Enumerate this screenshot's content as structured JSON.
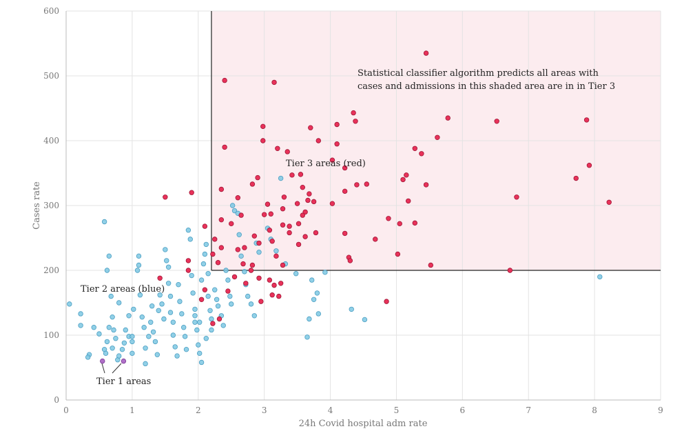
{
  "chart_data": {
    "type": "scatter",
    "title": "",
    "xlabel": "24h Covid hospital adm rate",
    "ylabel": "Cases rate",
    "xlim": [
      0,
      9
    ],
    "ylim": [
      0,
      600
    ],
    "xticks": [
      "0",
      "1",
      "2",
      "3",
      "4",
      "5",
      "6",
      "7",
      "8",
      "9"
    ],
    "yticks": [
      "0",
      "100",
      "200",
      "300",
      "400",
      "500",
      "600"
    ],
    "grid": true,
    "legend": "none",
    "colors": {
      "tier2": "#7ec8e3",
      "tier2_stroke": "#4a9ec2",
      "tier3": "#e8325a",
      "tier3_stroke": "#a01535",
      "tier1": "#b070c8",
      "tier1_stroke": "#7a3a95",
      "shade": "#fcecef",
      "threshold_line": "#222222"
    },
    "threshold": {
      "x": 2.2,
      "y": 200
    },
    "annotations": {
      "classifier_line1": "Statistical classifier algorithm predicts all areas with",
      "classifier_line2": "cases and admissions in this shaded area are in in Tier 3",
      "tier3_label": "Tier 3 areas (red)",
      "tier2_label": "Tier 2 areas (blue)",
      "tier1_label": "Tier 1 areas"
    },
    "series": [
      {
        "name": "Tier 1 areas",
        "color": "#b070c8",
        "points": [
          [
            0.55,
            60
          ],
          [
            0.87,
            60
          ]
        ]
      },
      {
        "name": "Tier 3 areas (red)",
        "color": "#e8325a",
        "points": [
          [
            2.4,
            493
          ],
          [
            3.15,
            490
          ],
          [
            5.45,
            535
          ],
          [
            4.35,
            443
          ],
          [
            4.38,
            430
          ],
          [
            4.1,
            425
          ],
          [
            5.78,
            435
          ],
          [
            6.52,
            430
          ],
          [
            7.88,
            432
          ],
          [
            2.98,
            422
          ],
          [
            3.7,
            420
          ],
          [
            2.4,
            390
          ],
          [
            2.98,
            400
          ],
          [
            3.2,
            388
          ],
          [
            3.35,
            383
          ],
          [
            3.82,
            400
          ],
          [
            4.1,
            395
          ],
          [
            5.28,
            388
          ],
          [
            5.62,
            405
          ],
          [
            5.38,
            380
          ],
          [
            4.03,
            370
          ],
          [
            4.22,
            358
          ],
          [
            3.55,
            348
          ],
          [
            3.42,
            347
          ],
          [
            2.82,
            333
          ],
          [
            2.9,
            343
          ],
          [
            2.35,
            325
          ],
          [
            7.92,
            362
          ],
          [
            7.72,
            342
          ],
          [
            5.15,
            347
          ],
          [
            5.1,
            340
          ],
          [
            5.45,
            332
          ],
          [
            4.4,
            332
          ],
          [
            4.55,
            333
          ],
          [
            3.58,
            328
          ],
          [
            4.22,
            322
          ],
          [
            2.6,
            312
          ],
          [
            3.05,
            302
          ],
          [
            3.3,
            313
          ],
          [
            3.1,
            287
          ],
          [
            3.28,
            295
          ],
          [
            3.5,
            303
          ],
          [
            3.75,
            306
          ],
          [
            3.66,
            308
          ],
          [
            3.68,
            318
          ],
          [
            1.9,
            320
          ],
          [
            1.5,
            313
          ],
          [
            4.03,
            303
          ],
          [
            5.18,
            307
          ],
          [
            6.82,
            313
          ],
          [
            8.22,
            305
          ],
          [
            3.62,
            290
          ],
          [
            2.35,
            278
          ],
          [
            2.5,
            272
          ],
          [
            2.65,
            285
          ],
          [
            3.0,
            286
          ],
          [
            3.28,
            270
          ],
          [
            3.38,
            268
          ],
          [
            3.52,
            272
          ],
          [
            3.58,
            285
          ],
          [
            4.88,
            280
          ],
          [
            5.05,
            272
          ],
          [
            5.28,
            273
          ],
          [
            2.1,
            268
          ],
          [
            2.25,
            248
          ],
          [
            2.35,
            235
          ],
          [
            2.6,
            232
          ],
          [
            2.7,
            235
          ],
          [
            2.85,
            253
          ],
          [
            2.92,
            242
          ],
          [
            3.08,
            262
          ],
          [
            3.12,
            245
          ],
          [
            3.38,
            258
          ],
          [
            3.52,
            240
          ],
          [
            3.62,
            252
          ],
          [
            3.78,
            258
          ],
          [
            4.22,
            257
          ],
          [
            4.68,
            248
          ],
          [
            2.22,
            225
          ],
          [
            2.3,
            212
          ],
          [
            2.68,
            210
          ],
          [
            2.82,
            208
          ],
          [
            3.18,
            222
          ],
          [
            3.28,
            208
          ],
          [
            4.28,
            220
          ],
          [
            4.3,
            215
          ],
          [
            5.02,
            225
          ],
          [
            5.52,
            208
          ],
          [
            6.72,
            200
          ],
          [
            1.85,
            215
          ],
          [
            1.85,
            200
          ],
          [
            1.42,
            188
          ],
          [
            2.55,
            190
          ],
          [
            2.8,
            200
          ],
          [
            2.92,
            188
          ],
          [
            3.08,
            185
          ],
          [
            2.72,
            180
          ],
          [
            3.15,
            177
          ],
          [
            3.25,
            180
          ],
          [
            2.1,
            170
          ],
          [
            2.05,
            155
          ],
          [
            2.45,
            168
          ],
          [
            2.95,
            152
          ],
          [
            3.12,
            162
          ],
          [
            3.22,
            160
          ],
          [
            2.32,
            125
          ],
          [
            2.22,
            118
          ],
          [
            4.85,
            152
          ]
        ]
      },
      {
        "name": "Tier 2 areas (blue)",
        "color": "#7ec8e3",
        "points": [
          [
            0.05,
            148
          ],
          [
            0.22,
            133
          ],
          [
            0.22,
            115
          ],
          [
            0.35,
            70
          ],
          [
            0.33,
            66
          ],
          [
            0.42,
            112
          ],
          [
            0.5,
            102
          ],
          [
            0.58,
            78
          ],
          [
            0.6,
            72
          ],
          [
            0.62,
            90
          ],
          [
            0.65,
            112
          ],
          [
            0.7,
            128
          ],
          [
            0.72,
            108
          ],
          [
            0.7,
            80
          ],
          [
            0.75,
            95
          ],
          [
            0.78,
            62
          ],
          [
            0.8,
            68
          ],
          [
            0.85,
            78
          ],
          [
            0.88,
            88
          ],
          [
            0.9,
            108
          ],
          [
            0.95,
            130
          ],
          [
            0.95,
            98
          ],
          [
            1.0,
            98
          ],
          [
            1.0,
            72
          ],
          [
            1.0,
            90
          ],
          [
            1.02,
            140
          ],
          [
            1.08,
            200
          ],
          [
            1.1,
            208
          ],
          [
            1.1,
            222
          ],
          [
            1.12,
            162
          ],
          [
            1.15,
            128
          ],
          [
            1.18,
            112
          ],
          [
            1.2,
            56
          ],
          [
            1.2,
            80
          ],
          [
            1.25,
            98
          ],
          [
            1.28,
            120
          ],
          [
            1.3,
            145
          ],
          [
            1.32,
            105
          ],
          [
            1.35,
            90
          ],
          [
            1.38,
            70
          ],
          [
            1.4,
            138
          ],
          [
            1.42,
            162
          ],
          [
            1.45,
            148
          ],
          [
            1.48,
            125
          ],
          [
            1.5,
            232
          ],
          [
            1.52,
            215
          ],
          [
            1.55,
            205
          ],
          [
            1.55,
            180
          ],
          [
            1.58,
            160
          ],
          [
            1.58,
            135
          ],
          [
            1.62,
            120
          ],
          [
            1.62,
            100
          ],
          [
            1.65,
            82
          ],
          [
            1.68,
            68
          ],
          [
            1.7,
            178
          ],
          [
            1.72,
            152
          ],
          [
            1.75,
            133
          ],
          [
            1.78,
            112
          ],
          [
            1.8,
            98
          ],
          [
            1.82,
            78
          ],
          [
            1.85,
            262
          ],
          [
            1.88,
            248
          ],
          [
            1.9,
            192
          ],
          [
            1.92,
            165
          ],
          [
            1.95,
            140
          ],
          [
            1.95,
            120
          ],
          [
            1.98,
            108
          ],
          [
            2.0,
            85
          ],
          [
            2.02,
            72
          ],
          [
            2.05,
            58
          ],
          [
            2.05,
            185
          ],
          [
            2.08,
            210
          ],
          [
            2.1,
            225
          ],
          [
            2.12,
            240
          ],
          [
            2.15,
            195
          ],
          [
            2.15,
            160
          ],
          [
            2.18,
            138
          ],
          [
            2.2,
            125
          ],
          [
            2.2,
            108
          ],
          [
            2.25,
            170
          ],
          [
            2.28,
            155
          ],
          [
            2.3,
            145
          ],
          [
            2.35,
            130
          ],
          [
            2.38,
            115
          ],
          [
            2.42,
            200
          ],
          [
            2.45,
            185
          ],
          [
            2.48,
            160
          ],
          [
            2.5,
            148
          ],
          [
            2.52,
            300
          ],
          [
            2.55,
            292
          ],
          [
            2.6,
            288
          ],
          [
            2.62,
            255
          ],
          [
            2.65,
            222
          ],
          [
            2.7,
            198
          ],
          [
            2.72,
            178
          ],
          [
            2.75,
            160
          ],
          [
            2.8,
            148
          ],
          [
            2.85,
            130
          ],
          [
            2.88,
            242
          ],
          [
            2.92,
            228
          ],
          [
            3.25,
            342
          ],
          [
            3.05,
            265
          ],
          [
            3.1,
            248
          ],
          [
            3.18,
            230
          ],
          [
            3.32,
            210
          ],
          [
            3.48,
            195
          ],
          [
            3.65,
            97
          ],
          [
            3.68,
            125
          ],
          [
            3.75,
            155
          ],
          [
            3.8,
            165
          ],
          [
            3.82,
            133
          ],
          [
            3.92,
            197
          ],
          [
            3.72,
            185
          ],
          [
            0.58,
            275
          ],
          [
            0.65,
            222
          ],
          [
            0.62,
            200
          ],
          [
            0.68,
            160
          ],
          [
            0.8,
            150
          ],
          [
            4.32,
            140
          ],
          [
            4.52,
            124
          ],
          [
            8.08,
            190
          ],
          [
            2.12,
            95
          ],
          [
            2.02,
            120
          ],
          [
            1.95,
            130
          ]
        ]
      }
    ]
  }
}
